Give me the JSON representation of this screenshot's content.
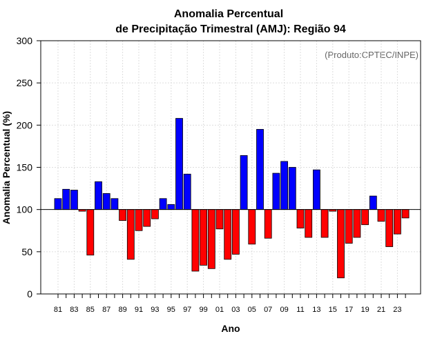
{
  "chart_data": {
    "type": "bar",
    "title": "Anomalia Percentual",
    "subtitle": "de Precipitação Trimestral (AMJ): Região 94",
    "xlabel": "Ano",
    "ylabel": "Anomalia Percentual (%)",
    "annotation": "(Produto:CPTEC/INPE)",
    "ylim": [
      0,
      300
    ],
    "yticks": [
      0,
      50,
      100,
      150,
      200,
      250,
      300
    ],
    "baseline": 100,
    "grid": true,
    "colors": {
      "above": "#0000ff",
      "below": "#ff0000",
      "grid": "#dddddd",
      "axis": "#000000"
    },
    "categories": [
      "81",
      "82",
      "83",
      "84",
      "85",
      "86",
      "87",
      "88",
      "89",
      "90",
      "91",
      "92",
      "93",
      "94",
      "95",
      "96",
      "97",
      "98",
      "99",
      "00",
      "01",
      "02",
      "03",
      "04",
      "05",
      "06",
      "07",
      "08",
      "09",
      "10",
      "11",
      "12",
      "13",
      "14",
      "15",
      "16",
      "17",
      "18",
      "19",
      "20",
      "21",
      "22",
      "23",
      "24"
    ],
    "tick_labels": [
      "81",
      "83",
      "85",
      "87",
      "89",
      "91",
      "93",
      "95",
      "97",
      "99",
      "01",
      "03",
      "05",
      "07",
      "09",
      "11",
      "13",
      "15",
      "17",
      "19",
      "21",
      "23"
    ],
    "values": [
      113,
      124,
      123,
      98,
      46,
      133,
      119,
      113,
      87,
      41,
      75,
      80,
      89,
      113,
      106,
      208,
      142,
      27,
      34,
      30,
      77,
      41,
      47,
      164,
      59,
      195,
      66,
      143,
      157,
      150,
      78,
      67,
      147,
      67,
      98,
      19,
      60,
      67,
      82,
      116,
      86,
      56,
      71,
      90
    ]
  }
}
